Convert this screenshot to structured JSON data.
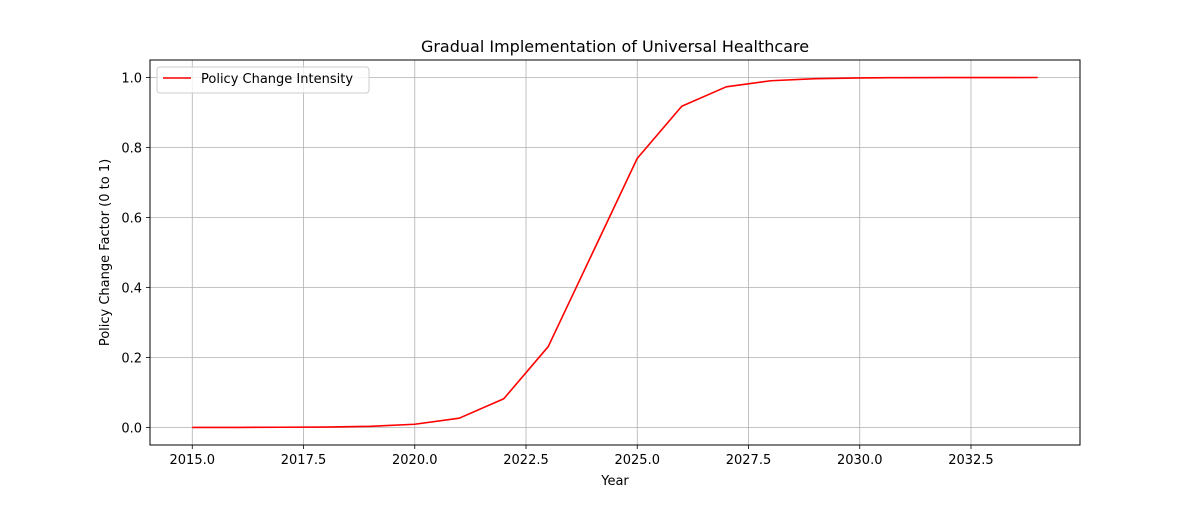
{
  "chart_data": {
    "type": "line",
    "title": "Gradual Implementation of Universal Healthcare",
    "xlabel": "Year",
    "ylabel": "Policy Change Factor (0 to 1)",
    "xlim": [
      2014.05,
      2034.95
    ],
    "ylim": [
      -0.05,
      1.05
    ],
    "x_ticks": [
      2015.0,
      2017.5,
      2020.0,
      2022.5,
      2025.0,
      2027.5,
      2030.0,
      2032.5
    ],
    "x_tick_labels": [
      "2015.0",
      "2017.5",
      "2020.0",
      "2022.5",
      "2025.0",
      "2027.5",
      "2030.0",
      "2032.5"
    ],
    "y_ticks": [
      0.0,
      0.2,
      0.4,
      0.6,
      0.8,
      1.0
    ],
    "y_tick_labels": [
      "0.0",
      "0.2",
      "0.4",
      "0.6",
      "0.8",
      "1.0"
    ],
    "grid": true,
    "legend_position": "top-left",
    "series": [
      {
        "name": "Policy Change Intensity",
        "color": "#ff0000",
        "x": [
          2015,
          2016,
          2017,
          2018,
          2019,
          2020,
          2021,
          2022,
          2023,
          2024,
          2025,
          2026,
          2027,
          2028,
          2029,
          2030,
          2031,
          2032,
          2033,
          2034
        ],
        "y": [
          0.0001,
          0.0003,
          0.0007,
          0.0012,
          0.0034,
          0.0093,
          0.0266,
          0.0821,
          0.2312,
          0.5,
          0.7689,
          0.9179,
          0.9734,
          0.9907,
          0.9966,
          0.9988,
          0.9996,
          0.9998,
          0.9999,
          1.0
        ]
      }
    ]
  }
}
